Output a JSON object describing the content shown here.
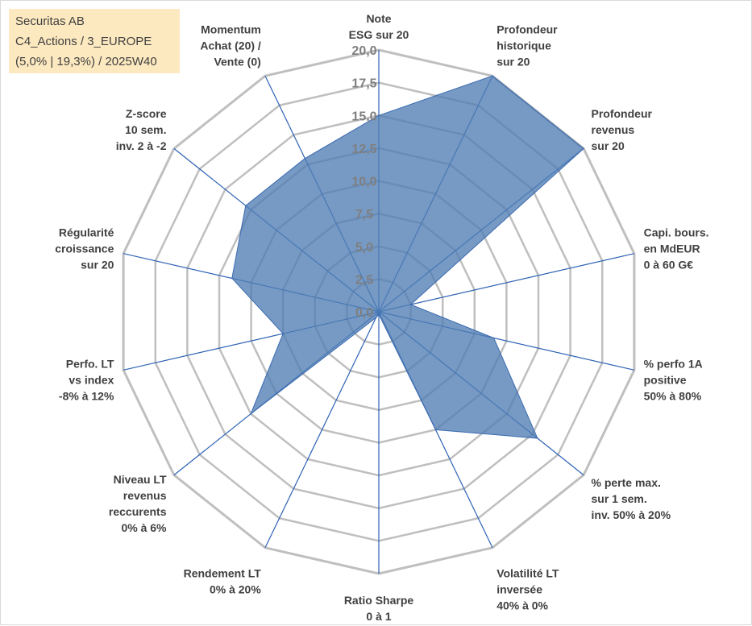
{
  "info": {
    "line1": "Securitas AB",
    "line2": "C4_Actions / 3_EUROPE",
    "line3": "(5,0% | 19,3%) / 2025W40"
  },
  "colors": {
    "fill": "#4f7db4",
    "line": "#3b6ab0",
    "grid": "#bfbfbf",
    "spoke": "#2f63b5"
  },
  "chart_data": {
    "type": "radar",
    "title": "",
    "rlim": [
      0,
      20
    ],
    "ticks": [
      "0,0",
      "2,5",
      "5,0",
      "7,5",
      "10,0",
      "12,5",
      "15,0",
      "17,5",
      "20,0"
    ],
    "axes": [
      {
        "label": [
          "Note",
          "ESG sur 20"
        ],
        "value": 15.0
      },
      {
        "label": [
          "Profondeur",
          "historique",
          "sur 20"
        ],
        "value": 20.0
      },
      {
        "label": [
          "Profondeur",
          "revenus",
          "sur 20"
        ],
        "value": 20.0
      },
      {
        "label": [
          "Capi. bours.",
          "en MdEUR",
          "0 à 60 G€"
        ],
        "value": 2.5
      },
      {
        "label": [
          "% perfo 1A",
          "positive",
          "50% à 80%"
        ],
        "value": 9.0
      },
      {
        "label": [
          "% perte max.",
          "sur 1 sem.",
          "inv. 50% à 20%"
        ],
        "value": 15.5
      },
      {
        "label": [
          "Volatilité LT",
          "inversée",
          "40% à 0%"
        ],
        "value": 10.0
      },
      {
        "label": [
          "Ratio Sharpe",
          "0 à 1"
        ],
        "value": 0.2
      },
      {
        "label": [
          "Rendement LT",
          "0% à 20%"
        ],
        "value": 0.5
      },
      {
        "label": [
          "Niveau LT",
          "revenus",
          "reccurents",
          "0% à 6%"
        ],
        "value": 12.5
      },
      {
        "label": [
          "Perfo. LT",
          "vs index",
          "-8% à 12%"
        ],
        "value": 7.5
      },
      {
        "label": [
          "Régularité",
          "croissance",
          "sur 20"
        ],
        "value": 11.5
      },
      {
        "label": [
          "Z-score",
          "10 sem.",
          "inv. 2 à -2"
        ],
        "value": 13.0
      },
      {
        "label": [
          "Momentum",
          "Achat (20) /",
          "Vente (0)"
        ],
        "value": 13.0
      }
    ]
  }
}
